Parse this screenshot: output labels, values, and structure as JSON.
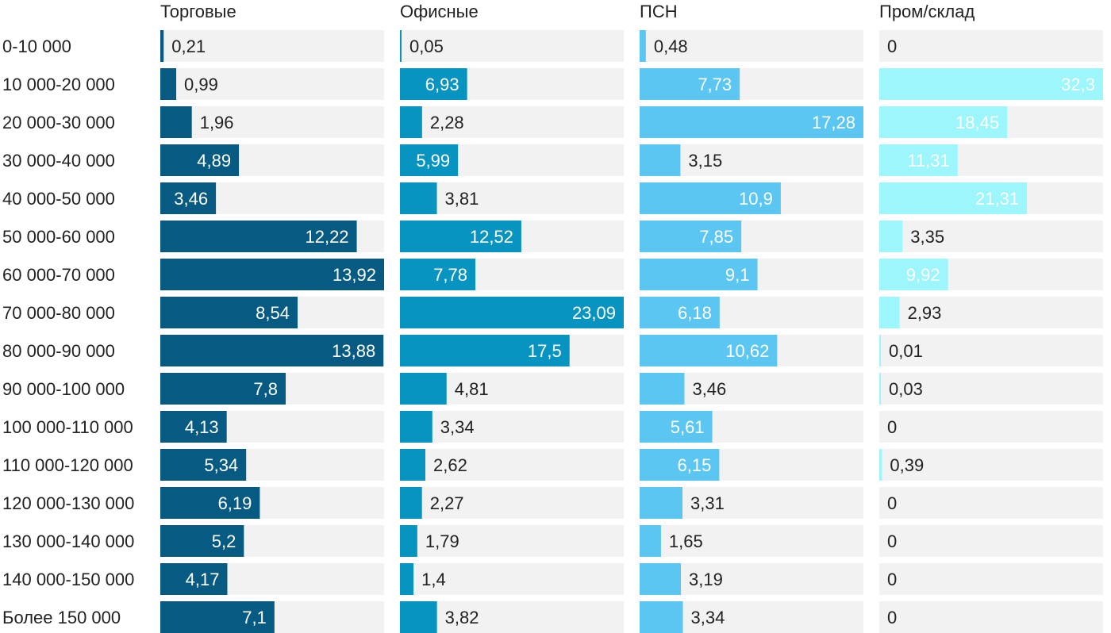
{
  "chart_data": {
    "type": "bar",
    "orientation": "horizontal",
    "layout": "small-multiples",
    "categories": [
      "0-10 000",
      "10 000-20 000",
      "20 000-30 000",
      "30 000-40 000",
      "40 000-50 000",
      "50 000-60 000",
      "60 000-70 000",
      "70 000-80 000",
      "80 000-90 000",
      "90 000-100 000",
      "100 000-110 000",
      "110 000-120 000",
      "120 000-130 000",
      "130 000-140 000",
      "140 000-150 000",
      "Более 150 000"
    ],
    "series": [
      {
        "name": "Торговые",
        "color": "#075b82",
        "max": 13.92,
        "values": [
          0.21,
          0.99,
          1.96,
          4.89,
          3.46,
          12.22,
          13.92,
          8.54,
          13.88,
          7.8,
          4.13,
          5.34,
          6.19,
          5.2,
          4.17,
          7.1
        ],
        "labels": [
          "0,21",
          "0,99",
          "1,96",
          "4,89",
          "3,46",
          "12,22",
          "13,92",
          "8,54",
          "13,88",
          "7,8",
          "4,13",
          "5,34",
          "6,19",
          "5,2",
          "4,17",
          "7,1"
        ]
      },
      {
        "name": "Офисные",
        "color": "#0894c1",
        "max": 23.09,
        "values": [
          0.05,
          6.93,
          2.28,
          5.99,
          3.81,
          12.52,
          7.78,
          23.09,
          17.5,
          4.81,
          3.34,
          2.62,
          2.27,
          1.79,
          1.4,
          3.82
        ],
        "labels": [
          "0,05",
          "6,93",
          "2,28",
          "5,99",
          "3,81",
          "12,52",
          "7,78",
          "23,09",
          "17,5",
          "4,81",
          "3,34",
          "2,62",
          "2,27",
          "1,79",
          "1,4",
          "3,82"
        ]
      },
      {
        "name": "ПСН",
        "color": "#5cc6f2",
        "max": 17.28,
        "values": [
          0.48,
          7.73,
          17.28,
          3.15,
          10.9,
          7.85,
          9.1,
          6.18,
          10.62,
          3.46,
          5.61,
          6.15,
          3.31,
          1.65,
          3.19,
          3.34
        ],
        "labels": [
          "0,48",
          "7,73",
          "17,28",
          "3,15",
          "10,9",
          "7,85",
          "9,1",
          "6,18",
          "10,62",
          "3,46",
          "5,61",
          "6,15",
          "3,31",
          "1,65",
          "3,19",
          "3,34"
        ]
      },
      {
        "name": "Пром/склад",
        "color": "#9cf6fb",
        "max": 32.3,
        "values": [
          0,
          32.3,
          18.45,
          11.31,
          21.31,
          3.35,
          9.92,
          2.93,
          0.01,
          0.03,
          0,
          0.39,
          0,
          0,
          0,
          0
        ],
        "labels": [
          "0",
          "32,3",
          "18,45",
          "11,31",
          "21,31",
          "3,35",
          "9,92",
          "2,93",
          "0,01",
          "0,03",
          "0",
          "0,39",
          "0",
          "0",
          "0",
          "0"
        ]
      }
    ],
    "track_color": "#f2f2f2",
    "text_color": "#222222",
    "inside_text_color": "#ffffff"
  }
}
